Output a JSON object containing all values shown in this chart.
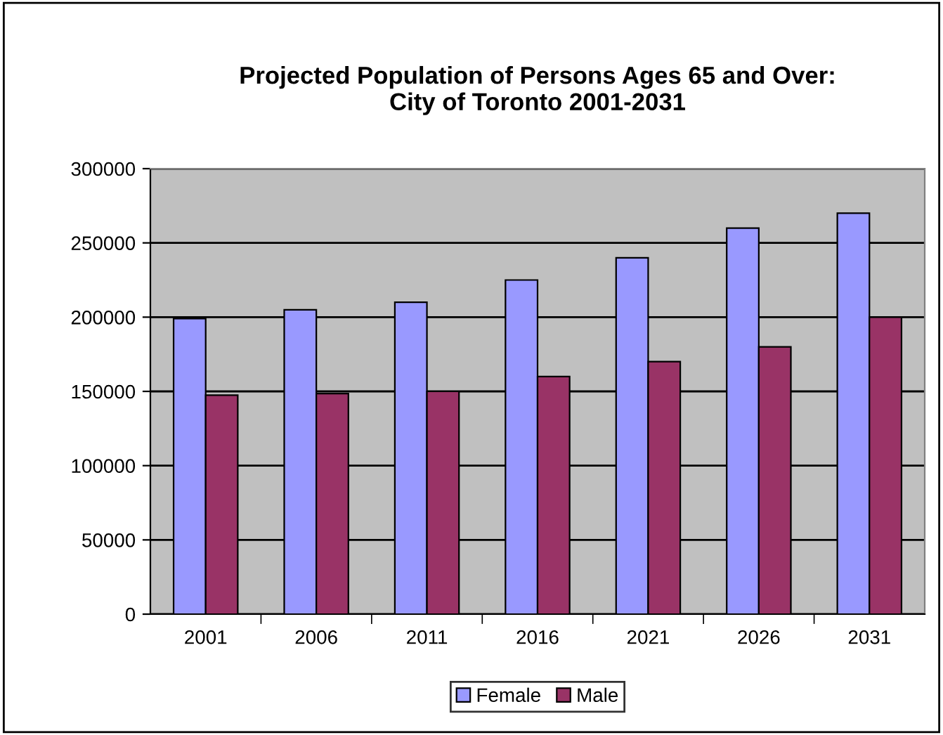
{
  "chart_data": {
    "type": "bar",
    "title": "Projected Population of Persons Ages 65 and Over:\nCity of Toronto 2001-2031",
    "categories": [
      "2001",
      "2006",
      "2011",
      "2016",
      "2021",
      "2026",
      "2031"
    ],
    "series": [
      {
        "name": "Female",
        "color": "#9999ff",
        "values": [
          199000,
          205000,
          210000,
          225000,
          240000,
          260000,
          270000
        ]
      },
      {
        "name": "Male",
        "color": "#993366",
        "values": [
          147500,
          148500,
          150000,
          160000,
          170000,
          180000,
          200000
        ]
      }
    ],
    "ylim": [
      0,
      300000
    ],
    "yticks": [
      0,
      50000,
      100000,
      150000,
      200000,
      250000,
      300000
    ],
    "grid": "y",
    "legend": "bottom"
  }
}
